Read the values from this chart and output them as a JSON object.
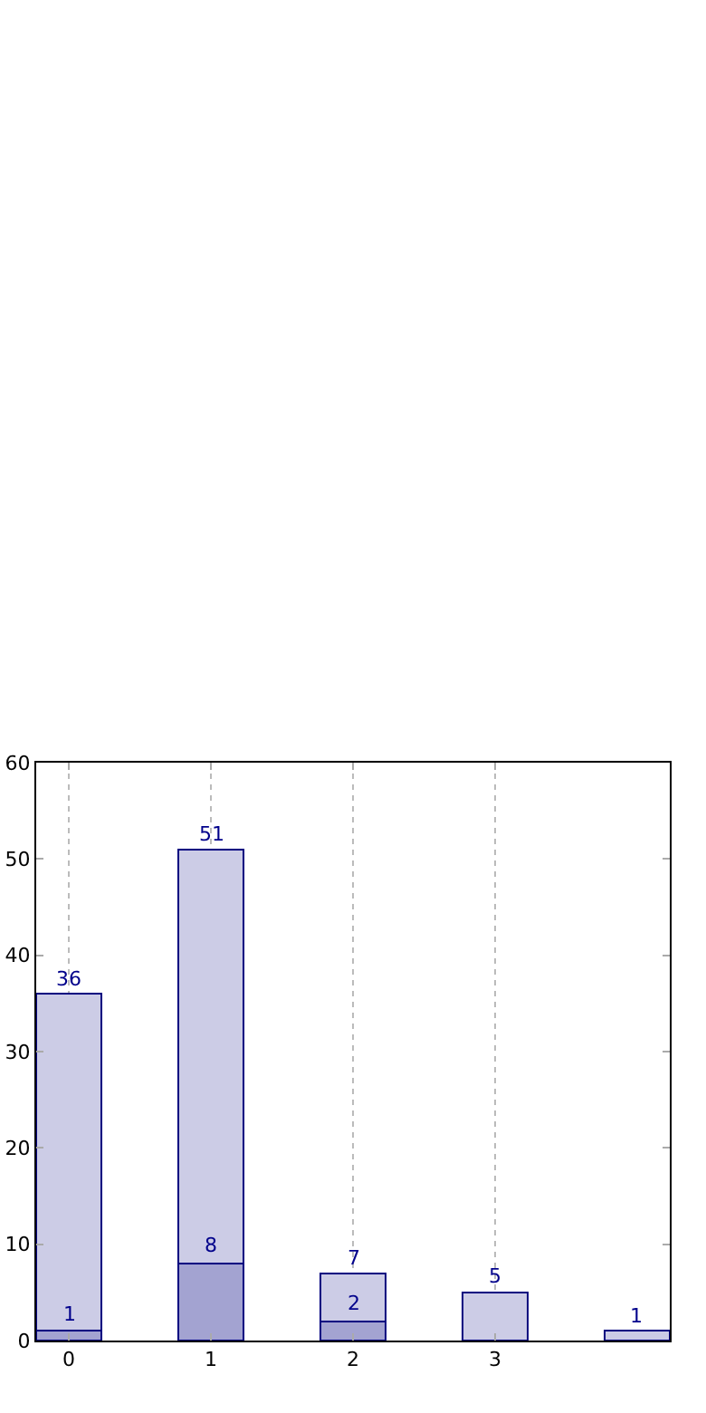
{
  "chart_data": {
    "type": "bar",
    "x": [
      0,
      1,
      2,
      3,
      4
    ],
    "series": [
      {
        "color": "#a3a3d1",
        "values": [
          1,
          8,
          2,
          null,
          null
        ],
        "value_labels": [
          "1",
          "8",
          "2",
          null,
          null
        ]
      },
      {
        "color": "#cccce6",
        "values": [
          35,
          43,
          5,
          5,
          1
        ]
      }
    ],
    "totals": [
      "36",
      "51",
      "7",
      "5",
      "1"
    ],
    "stacked": true,
    "xlim": [
      -0.23,
      4.23
    ],
    "xticks": [
      0,
      1,
      2,
      3
    ],
    "ylim": [
      0,
      60
    ],
    "yticks": [
      0,
      10,
      20,
      30,
      40,
      50,
      60
    ],
    "grid": "x"
  }
}
